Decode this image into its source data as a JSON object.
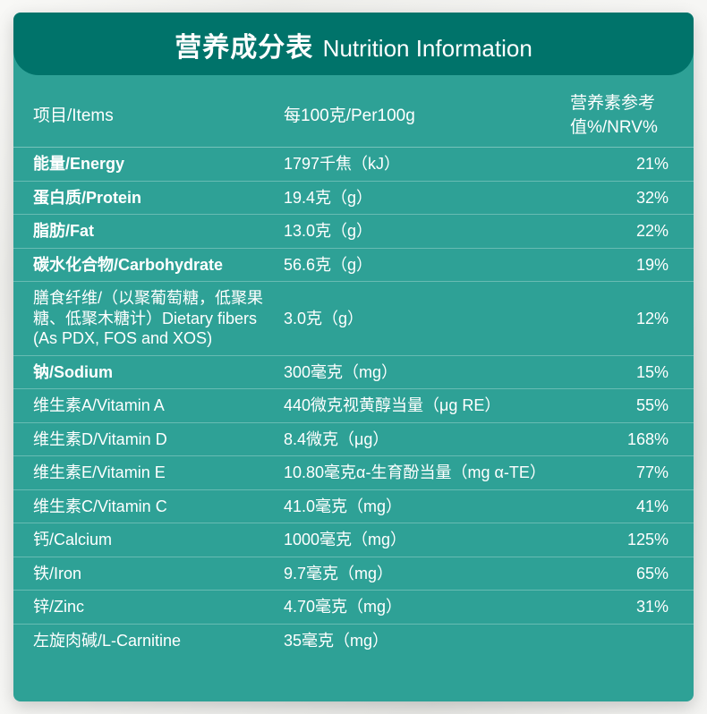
{
  "title": {
    "cn": "营养成分表",
    "en": "Nutrition Information"
  },
  "colors": {
    "panel_bg": "#2ea196",
    "title_bg": "#00736a",
    "text": "#ffffff",
    "divider": "rgba(255,255,255,0.3)"
  },
  "columns": [
    "项目/Items",
    "每100克/Per100g",
    "营养素参考值%/NRV%"
  ],
  "rows": [
    {
      "item": "能量/Energy",
      "per100g": "1797千焦（kJ）",
      "nrv": "21%",
      "bold": true
    },
    {
      "item": "蛋白质/Protein",
      "per100g": "19.4克（g）",
      "nrv": "32%",
      "bold": true
    },
    {
      "item": "脂肪/Fat",
      "per100g": "13.0克（g）",
      "nrv": "22%",
      "bold": true
    },
    {
      "item": "碳水化合物/Carbohydrate",
      "per100g": "56.6克（g）",
      "nrv": "19%",
      "bold": true
    },
    {
      "item": "膳食纤维/（以聚葡萄糖，低聚果糖、低聚木糖计）Dietary fibers (As PDX, FOS and XOS)",
      "per100g": "3.0克（g）",
      "nrv": "12%",
      "bold": false
    },
    {
      "item": "钠/Sodium",
      "per100g": "300毫克（mg）",
      "nrv": "15%",
      "bold": true
    },
    {
      "item": "维生素A/Vitamin A",
      "per100g": "440微克视黄醇当量（μg RE）",
      "nrv": "55%",
      "bold": false
    },
    {
      "item": "维生素D/Vitamin D",
      "per100g": "8.4微克（μg）",
      "nrv": "168%",
      "bold": false
    },
    {
      "item": "维生素E/Vitamin E",
      "per100g": "10.80毫克α-生育酚当量（mg α-TE）",
      "nrv": "77%",
      "bold": false
    },
    {
      "item": "维生素C/Vitamin C",
      "per100g": "41.0毫克（mg）",
      "nrv": "41%",
      "bold": false
    },
    {
      "item": "钙/Calcium",
      "per100g": "1000毫克（mg）",
      "nrv": "125%",
      "bold": false
    },
    {
      "item": "铁/Iron",
      "per100g": "9.7毫克（mg）",
      "nrv": "65%",
      "bold": false
    },
    {
      "item": "锌/Zinc",
      "per100g": "4.70毫克（mg）",
      "nrv": "31%",
      "bold": false
    },
    {
      "item": "左旋肉碱/L-Carnitine",
      "per100g": "35毫克（mg）",
      "nrv": "",
      "bold": false
    }
  ]
}
